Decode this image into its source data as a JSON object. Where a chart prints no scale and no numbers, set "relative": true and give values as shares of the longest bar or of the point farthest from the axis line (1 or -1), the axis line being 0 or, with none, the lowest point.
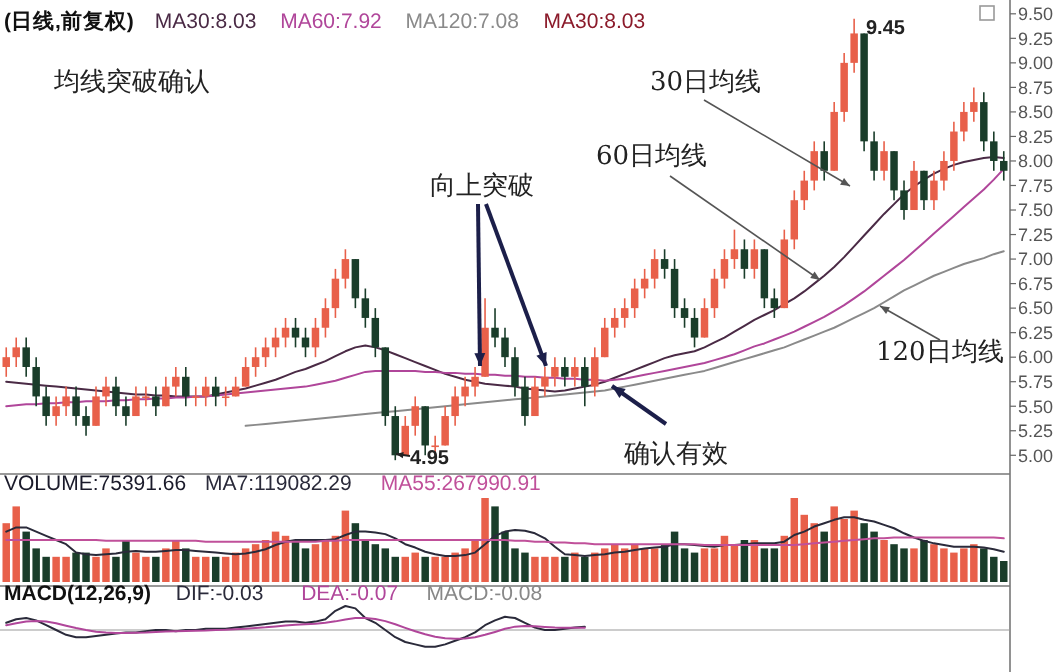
{
  "chart_data": [
    {
      "type": "candlestick",
      "title": "(日线,前复权)",
      "legend": "top left",
      "categories": [
        null,
        null,
        null,
        null,
        null,
        null,
        null,
        null,
        null,
        null,
        null,
        null,
        null,
        null,
        null,
        null,
        null,
        null,
        null,
        null,
        null,
        null,
        null,
        null,
        null,
        null,
        null,
        null,
        null,
        null,
        null,
        null,
        null,
        null,
        null,
        null,
        null,
        null,
        null,
        null,
        null,
        null,
        null,
        null,
        null,
        null,
        null,
        null,
        null,
        null,
        null,
        null,
        null,
        null,
        null,
        null,
        null,
        null,
        null,
        null,
        null,
        null,
        null,
        null,
        null,
        null,
        null,
        null,
        null,
        null,
        null,
        null,
        null,
        null,
        null,
        null,
        null,
        null,
        null,
        null,
        null,
        null,
        null,
        null,
        null,
        null,
        null,
        null,
        null,
        null,
        null,
        null,
        null,
        null,
        null,
        null,
        null,
        null,
        null,
        null,
        null
      ],
      "ohlc": [
        [
          5.9,
          6.1,
          5.8,
          6.0
        ],
        [
          6.0,
          6.2,
          5.9,
          6.1
        ],
        [
          6.1,
          6.2,
          5.8,
          5.9
        ],
        [
          5.9,
          6.0,
          5.5,
          5.6
        ],
        [
          5.6,
          5.7,
          5.3,
          5.4
        ],
        [
          5.4,
          5.6,
          5.3,
          5.5
        ],
        [
          5.5,
          5.7,
          5.4,
          5.6
        ],
        [
          5.6,
          5.7,
          5.3,
          5.4
        ],
        [
          5.4,
          5.5,
          5.2,
          5.3
        ],
        [
          5.3,
          5.7,
          5.3,
          5.6
        ],
        [
          5.6,
          5.8,
          5.5,
          5.7
        ],
        [
          5.7,
          5.8,
          5.4,
          5.5
        ],
        [
          5.5,
          5.6,
          5.3,
          5.4
        ],
        [
          5.4,
          5.7,
          5.4,
          5.6
        ],
        [
          5.6,
          5.7,
          5.5,
          5.6
        ],
        [
          5.6,
          5.7,
          5.4,
          5.5
        ],
        [
          5.5,
          5.8,
          5.5,
          5.7
        ],
        [
          5.7,
          5.9,
          5.6,
          5.8
        ],
        [
          5.8,
          5.9,
          5.5,
          5.6
        ],
        [
          5.6,
          5.7,
          5.5,
          5.6
        ],
        [
          5.6,
          5.8,
          5.5,
          5.7
        ],
        [
          5.7,
          5.8,
          5.5,
          5.6
        ],
        [
          5.6,
          5.7,
          5.5,
          5.6
        ],
        [
          5.6,
          5.8,
          5.6,
          5.7
        ],
        [
          5.7,
          6.0,
          5.7,
          5.9
        ],
        [
          5.9,
          6.1,
          5.8,
          6.0
        ],
        [
          6.0,
          6.2,
          5.9,
          6.1
        ],
        [
          6.1,
          6.3,
          6.0,
          6.2
        ],
        [
          6.2,
          6.4,
          6.1,
          6.3
        ],
        [
          6.3,
          6.4,
          6.1,
          6.2
        ],
        [
          6.2,
          6.3,
          6.0,
          6.1
        ],
        [
          6.1,
          6.4,
          6.0,
          6.3
        ],
        [
          6.3,
          6.6,
          6.2,
          6.5
        ],
        [
          6.5,
          6.9,
          6.4,
          6.8
        ],
        [
          6.8,
          7.1,
          6.7,
          7.0
        ],
        [
          7.0,
          7.0,
          6.5,
          6.6
        ],
        [
          6.6,
          6.7,
          6.3,
          6.4
        ],
        [
          6.4,
          6.5,
          6.0,
          6.1
        ],
        [
          6.1,
          6.1,
          5.3,
          5.4
        ],
        [
          5.4,
          5.5,
          4.95,
          5.0
        ],
        [
          5.0,
          5.4,
          5.0,
          5.3
        ],
        [
          5.3,
          5.6,
          5.2,
          5.5
        ],
        [
          5.5,
          5.5,
          5.0,
          5.1
        ],
        [
          5.1,
          5.2,
          5.0,
          5.1
        ],
        [
          5.1,
          5.5,
          5.1,
          5.4
        ],
        [
          5.4,
          5.7,
          5.3,
          5.6
        ],
        [
          5.6,
          5.8,
          5.5,
          5.7
        ],
        [
          5.7,
          5.9,
          5.6,
          5.8
        ],
        [
          5.8,
          6.6,
          5.8,
          6.3
        ],
        [
          6.3,
          6.5,
          6.1,
          6.2
        ],
        [
          6.2,
          6.3,
          5.9,
          6.0
        ],
        [
          6.0,
          6.1,
          5.6,
          5.7
        ],
        [
          5.7,
          5.8,
          5.3,
          5.4
        ],
        [
          5.4,
          5.8,
          5.4,
          5.7
        ],
        [
          5.7,
          5.9,
          5.6,
          5.8
        ],
        [
          5.8,
          6.0,
          5.7,
          5.9
        ],
        [
          5.9,
          6.0,
          5.7,
          5.8
        ],
        [
          5.8,
          6.0,
          5.7,
          5.9
        ],
        [
          5.9,
          6.0,
          5.5,
          5.7
        ],
        [
          5.7,
          6.1,
          5.6,
          6.0
        ],
        [
          6.0,
          6.4,
          6.0,
          6.3
        ],
        [
          6.3,
          6.5,
          6.2,
          6.4
        ],
        [
          6.4,
          6.6,
          6.3,
          6.5
        ],
        [
          6.5,
          6.8,
          6.4,
          6.7
        ],
        [
          6.7,
          6.9,
          6.6,
          6.8
        ],
        [
          6.8,
          7.1,
          6.7,
          7.0
        ],
        [
          7.0,
          7.1,
          6.8,
          6.9
        ],
        [
          6.9,
          7.0,
          6.4,
          6.5
        ],
        [
          6.5,
          6.6,
          6.3,
          6.4
        ],
        [
          6.4,
          6.5,
          6.1,
          6.2
        ],
        [
          6.2,
          6.6,
          6.2,
          6.5
        ],
        [
          6.5,
          6.9,
          6.4,
          6.8
        ],
        [
          6.8,
          7.1,
          6.7,
          7.0
        ],
        [
          7.0,
          7.3,
          6.9,
          7.1
        ],
        [
          7.1,
          7.2,
          6.8,
          6.9
        ],
        [
          6.9,
          7.2,
          6.8,
          7.1
        ],
        [
          7.1,
          7.1,
          6.5,
          6.6
        ],
        [
          6.6,
          6.7,
          6.4,
          6.5
        ],
        [
          6.5,
          7.3,
          6.5,
          7.2
        ],
        [
          7.2,
          7.7,
          7.1,
          7.6
        ],
        [
          7.6,
          7.9,
          7.5,
          7.8
        ],
        [
          7.8,
          8.2,
          7.7,
          8.1
        ],
        [
          8.1,
          8.2,
          7.8,
          7.9
        ],
        [
          7.9,
          8.6,
          7.9,
          8.5
        ],
        [
          8.5,
          9.1,
          8.4,
          9.0
        ],
        [
          9.0,
          9.45,
          8.9,
          9.3
        ],
        [
          9.3,
          9.3,
          8.1,
          8.2
        ],
        [
          8.2,
          8.3,
          7.8,
          7.9
        ],
        [
          7.9,
          8.2,
          7.8,
          8.1
        ],
        [
          8.1,
          8.1,
          7.6,
          7.7
        ],
        [
          7.7,
          7.8,
          7.4,
          7.5
        ],
        [
          7.5,
          8.0,
          7.5,
          7.9
        ],
        [
          7.9,
          7.9,
          7.5,
          7.6
        ],
        [
          7.6,
          7.9,
          7.5,
          7.8
        ],
        [
          7.8,
          8.1,
          7.7,
          8.0
        ],
        [
          8.0,
          8.4,
          7.9,
          8.3
        ],
        [
          8.3,
          8.6,
          8.2,
          8.5
        ],
        [
          8.5,
          8.75,
          8.4,
          8.6
        ],
        [
          8.6,
          8.7,
          8.1,
          8.2
        ],
        [
          8.2,
          8.3,
          7.9,
          8.0
        ],
        [
          8.0,
          8.1,
          7.8,
          7.9
        ]
      ],
      "colors": [
        "#e8604a",
        "#e8604a",
        "#1a3d2a",
        "#1a3d2a",
        "#1a3d2a",
        "#e8604a",
        "#e8604a",
        "#1a3d2a",
        "#1a3d2a",
        "#e8604a",
        "#e8604a",
        "#1a3d2a",
        "#1a3d2a",
        "#e8604a",
        "#e8604a",
        "#1a3d2a",
        "#e8604a",
        "#e8604a",
        "#1a3d2a",
        "#e8604a",
        "#e8604a",
        "#1a3d2a",
        "#e8604a",
        "#e8604a",
        "#e8604a",
        "#e8604a",
        "#e8604a",
        "#e8604a",
        "#e8604a",
        "#1a3d2a",
        "#1a3d2a",
        "#e8604a",
        "#e8604a",
        "#e8604a",
        "#e8604a",
        "#1a3d2a",
        "#1a3d2a",
        "#1a3d2a",
        "#1a3d2a",
        "#1a3d2a",
        "#e8604a",
        "#e8604a",
        "#1a3d2a",
        "#e8604a",
        "#e8604a",
        "#e8604a",
        "#e8604a",
        "#e8604a",
        "#e8604a",
        "#1a3d2a",
        "#1a3d2a",
        "#1a3d2a",
        "#1a3d2a",
        "#e8604a",
        "#e8604a",
        "#e8604a",
        "#1a3d2a",
        "#e8604a",
        "#1a3d2a",
        "#e8604a",
        "#e8604a",
        "#e8604a",
        "#e8604a",
        "#e8604a",
        "#e8604a",
        "#e8604a",
        "#1a3d2a",
        "#1a3d2a",
        "#1a3d2a",
        "#1a3d2a",
        "#e8604a",
        "#e8604a",
        "#e8604a",
        "#e8604a",
        "#1a3d2a",
        "#e8604a",
        "#1a3d2a",
        "#1a3d2a",
        "#e8604a",
        "#e8604a",
        "#e8604a",
        "#e8604a",
        "#1a3d2a",
        "#e8604a",
        "#e8604a",
        "#e8604a",
        "#1a3d2a",
        "#1a3d2a",
        "#e8604a",
        "#1a3d2a",
        "#1a3d2a",
        "#e8604a",
        "#1a3d2a",
        "#e8604a",
        "#e8604a",
        "#e8604a",
        "#e8604a",
        "#e8604a",
        "#1a3d2a",
        "#1a3d2a",
        "#1a3d2a"
      ],
      "series": [
        {
          "type": "line",
          "name": "MA30:8.03",
          "color": "#4a2a45",
          "values": [
            5.75,
            5.74,
            5.73,
            5.72,
            5.71,
            5.7,
            5.69,
            5.68,
            5.67,
            5.66,
            5.65,
            5.64,
            5.63,
            5.62,
            5.62,
            5.61,
            5.61,
            5.6,
            5.6,
            5.6,
            5.6,
            5.62,
            5.64,
            5.66,
            5.68,
            5.71,
            5.74,
            5.77,
            5.81,
            5.85,
            5.88,
            5.92,
            5.96,
            6.01,
            6.06,
            6.1,
            6.12,
            6.1,
            6.07,
            6.03,
            5.99,
            5.95,
            5.91,
            5.87,
            5.83,
            5.8,
            5.77,
            5.75,
            5.73,
            5.72,
            5.71,
            5.7,
            5.68,
            5.67,
            5.66,
            5.65,
            5.66,
            5.68,
            5.7,
            5.72,
            5.75,
            5.79,
            5.83,
            5.87,
            5.91,
            5.95,
            5.99,
            6.02,
            6.04,
            6.06,
            6.1,
            6.15,
            6.2,
            6.26,
            6.32,
            6.38,
            6.43,
            6.48,
            6.54,
            6.6,
            6.67,
            6.75,
            6.83,
            6.92,
            7.02,
            7.13,
            7.24,
            7.35,
            7.46,
            7.56,
            7.66,
            7.74,
            7.81,
            7.87,
            7.92,
            7.96,
            7.99,
            8.01,
            8.03,
            8.04,
            8.03
          ]
        },
        {
          "type": "line",
          "name": "MA60:7.92",
          "color": "#b0469a",
          "values": [
            5.5,
            5.51,
            5.52,
            5.52,
            5.53,
            5.53,
            5.54,
            5.54,
            5.55,
            5.55,
            5.55,
            5.56,
            5.56,
            5.57,
            5.57,
            5.58,
            5.58,
            5.59,
            5.59,
            5.6,
            5.6,
            5.61,
            5.62,
            5.63,
            5.64,
            5.65,
            5.66,
            5.67,
            5.68,
            5.69,
            5.7,
            5.72,
            5.74,
            5.76,
            5.79,
            5.82,
            5.85,
            5.86,
            5.86,
            5.86,
            5.86,
            5.86,
            5.85,
            5.85,
            5.84,
            5.84,
            5.83,
            5.83,
            5.82,
            5.82,
            5.81,
            5.81,
            5.8,
            5.8,
            5.79,
            5.79,
            5.78,
            5.78,
            5.77,
            5.77,
            5.76,
            5.77,
            5.78,
            5.8,
            5.82,
            5.84,
            5.86,
            5.88,
            5.9,
            5.92,
            5.94,
            5.97,
            6.0,
            6.03,
            6.07,
            6.11,
            6.14,
            6.18,
            6.22,
            6.26,
            6.31,
            6.36,
            6.41,
            6.47,
            6.53,
            6.6,
            6.67,
            6.75,
            6.83,
            6.91,
            6.99,
            7.08,
            7.17,
            7.26,
            7.35,
            7.44,
            7.53,
            7.62,
            7.71,
            7.81,
            7.92
          ]
        },
        {
          "type": "line",
          "name": "MA120:7.08",
          "color": "#8a8a8a",
          "values": [
            null,
            null,
            null,
            null,
            null,
            null,
            null,
            null,
            null,
            null,
            null,
            null,
            null,
            null,
            null,
            null,
            null,
            null,
            null,
            null,
            null,
            null,
            null,
            null,
            5.3,
            5.31,
            5.32,
            5.33,
            5.34,
            5.35,
            5.36,
            5.37,
            5.38,
            5.39,
            5.4,
            5.41,
            5.42,
            5.43,
            5.44,
            5.45,
            5.46,
            5.47,
            5.48,
            5.49,
            5.5,
            5.51,
            5.52,
            5.53,
            5.54,
            5.55,
            5.56,
            5.57,
            5.58,
            5.59,
            5.6,
            5.61,
            5.62,
            5.63,
            5.64,
            5.65,
            5.66,
            5.68,
            5.7,
            5.72,
            5.74,
            5.76,
            5.78,
            5.8,
            5.82,
            5.84,
            5.86,
            5.89,
            5.92,
            5.95,
            5.98,
            6.01,
            6.04,
            6.07,
            6.1,
            6.14,
            6.18,
            6.22,
            6.26,
            6.3,
            6.35,
            6.4,
            6.45,
            6.5,
            6.56,
            6.62,
            6.68,
            6.73,
            6.78,
            6.83,
            6.87,
            6.91,
            6.95,
            6.98,
            7.01,
            7.05,
            7.08
          ]
        }
      ],
      "ylim": [
        4.85,
        9.6
      ],
      "yticks": [
        {
          "value": 5,
          "label": "5.00"
        },
        {
          "value": 5.25,
          "label": "5.25"
        },
        {
          "value": 5.5,
          "label": "5.50"
        },
        {
          "value": 5.75,
          "label": "5.75"
        },
        {
          "value": 6,
          "label": "6.00"
        },
        {
          "value": 6.25,
          "label": "6.25"
        },
        {
          "value": 6.5,
          "label": "6.50"
        },
        {
          "value": 6.75,
          "label": "6.75"
        },
        {
          "value": 7,
          "label": "7.00"
        },
        {
          "value": 7.25,
          "label": "7.25"
        },
        {
          "value": 7.5,
          "label": "7.50"
        },
        {
          "value": 7.75,
          "label": "7.75"
        },
        {
          "value": 8,
          "label": "8.00"
        },
        {
          "value": 8.25,
          "label": "8.25"
        },
        {
          "value": 8.5,
          "label": "8.50"
        },
        {
          "value": 8.75,
          "label": "8.75"
        },
        {
          "value": 9,
          "label": "9.00"
        },
        {
          "value": 9.25,
          "label": "9.25"
        },
        {
          "value": 9.5,
          "label": "9.50"
        }
      ],
      "annotations": [
        "均线突破确认",
        "向上突破",
        "30日均线",
        "60日均线",
        "120日均线",
        "确认有效",
        "9.45",
        "4.95",
        "MA30:8.03"
      ]
    },
    {
      "type": "bar",
      "relative": true,
      "legend": "top left",
      "categories": [
        null,
        null,
        null,
        null,
        null,
        null,
        null,
        null,
        null,
        null,
        null,
        null,
        null,
        null,
        null,
        null,
        null,
        null,
        null,
        null,
        null,
        null,
        null,
        null,
        null,
        null,
        null,
        null,
        null,
        null,
        null,
        null,
        null,
        null,
        null,
        null,
        null,
        null,
        null,
        null,
        null,
        null,
        null,
        null,
        null,
        null,
        null,
        null,
        null,
        null,
        null,
        null,
        null,
        null,
        null,
        null,
        null,
        null,
        null,
        null,
        null,
        null,
        null,
        null,
        null,
        null,
        null,
        null,
        null,
        null,
        null,
        null,
        null,
        null,
        null,
        null,
        null,
        null,
        null,
        null,
        null,
        null,
        null,
        null,
        null,
        null,
        null,
        null,
        null,
        null,
        null,
        null,
        null,
        null,
        null,
        null,
        null,
        null,
        null,
        null,
        null
      ],
      "series": [
        {
          "type": "bar",
          "name": "VOLUME:75391.66",
          "color": "#1a1a2a",
          "colors": [
            "#e8604a",
            "#e8604a",
            "#1a3d2a",
            "#1a3d2a",
            "#1a3d2a",
            "#e8604a",
            "#e8604a",
            "#1a3d2a",
            "#1a3d2a",
            "#e8604a",
            "#e8604a",
            "#1a3d2a",
            "#1a3d2a",
            "#e8604a",
            "#e8604a",
            "#1a3d2a",
            "#e8604a",
            "#e8604a",
            "#1a3d2a",
            "#e8604a",
            "#e8604a",
            "#1a3d2a",
            "#e8604a",
            "#e8604a",
            "#e8604a",
            "#e8604a",
            "#e8604a",
            "#e8604a",
            "#e8604a",
            "#1a3d2a",
            "#1a3d2a",
            "#e8604a",
            "#e8604a",
            "#e8604a",
            "#e8604a",
            "#1a3d2a",
            "#1a3d2a",
            "#1a3d2a",
            "#1a3d2a",
            "#1a3d2a",
            "#e8604a",
            "#e8604a",
            "#1a3d2a",
            "#e8604a",
            "#e8604a",
            "#e8604a",
            "#e8604a",
            "#e8604a",
            "#e8604a",
            "#1a3d2a",
            "#1a3d2a",
            "#1a3d2a",
            "#1a3d2a",
            "#e8604a",
            "#e8604a",
            "#e8604a",
            "#1a3d2a",
            "#e8604a",
            "#1a3d2a",
            "#e8604a",
            "#e8604a",
            "#e8604a",
            "#e8604a",
            "#e8604a",
            "#e8604a",
            "#e8604a",
            "#1a3d2a",
            "#1a3d2a",
            "#1a3d2a",
            "#1a3d2a",
            "#e8604a",
            "#e8604a",
            "#e8604a",
            "#e8604a",
            "#1a3d2a",
            "#e8604a",
            "#1a3d2a",
            "#1a3d2a",
            "#e8604a",
            "#e8604a",
            "#e8604a",
            "#e8604a",
            "#1a3d2a",
            "#e8604a",
            "#e8604a",
            "#e8604a",
            "#1a3d2a",
            "#1a3d2a",
            "#e8604a",
            "#1a3d2a",
            "#1a3d2a",
            "#e8604a",
            "#1a3d2a",
            "#e8604a",
            "#e8604a",
            "#e8604a",
            "#e8604a",
            "#e8604a",
            "#1a3d2a",
            "#1a3d2a",
            "#1a3d2a"
          ],
          "values": [
            0.7,
            0.9,
            0.6,
            0.4,
            0.3,
            0.3,
            0.3,
            0.35,
            0.35,
            0.3,
            0.4,
            0.3,
            0.5,
            0.35,
            0.3,
            0.3,
            0.4,
            0.5,
            0.4,
            0.3,
            0.3,
            0.3,
            0.3,
            0.35,
            0.4,
            0.45,
            0.5,
            0.6,
            0.55,
            0.5,
            0.4,
            0.45,
            0.5,
            0.55,
            0.85,
            0.7,
            0.5,
            0.45,
            0.4,
            0.3,
            0.3,
            0.35,
            0.3,
            0.3,
            0.3,
            0.35,
            0.4,
            0.5,
            1.0,
            0.9,
            0.6,
            0.4,
            0.35,
            0.3,
            0.3,
            0.3,
            0.3,
            0.35,
            0.3,
            0.35,
            0.4,
            0.45,
            0.4,
            0.45,
            0.4,
            0.4,
            0.45,
            0.6,
            0.4,
            0.35,
            0.4,
            0.4,
            0.55,
            0.45,
            0.5,
            0.5,
            0.4,
            0.4,
            0.55,
            1.0,
            0.8,
            0.7,
            0.6,
            0.9,
            0.75,
            0.85,
            0.7,
            0.6,
            0.5,
            0.45,
            0.4,
            0.4,
            0.5,
            0.45,
            0.4,
            0.35,
            0.4,
            0.45,
            0.4,
            0.3,
            0.25
          ]
        },
        {
          "type": "line",
          "name": "MA7:119082.29",
          "color": "#2a2a3a",
          "values": [
            0.6,
            0.65,
            0.65,
            0.6,
            0.55,
            0.5,
            0.45,
            0.35,
            0.33,
            0.32,
            0.33,
            0.34,
            0.36,
            0.37,
            0.36,
            0.36,
            0.37,
            0.38,
            0.38,
            0.37,
            0.36,
            0.35,
            0.34,
            0.33,
            0.34,
            0.36,
            0.39,
            0.44,
            0.48,
            0.5,
            0.5,
            0.5,
            0.5,
            0.51,
            0.56,
            0.6,
            0.6,
            0.59,
            0.57,
            0.52,
            0.45,
            0.41,
            0.36,
            0.33,
            0.31,
            0.31,
            0.32,
            0.35,
            0.45,
            0.55,
            0.6,
            0.62,
            0.61,
            0.58,
            0.52,
            0.42,
            0.33,
            0.32,
            0.31,
            0.32,
            0.33,
            0.35,
            0.36,
            0.38,
            0.4,
            0.41,
            0.42,
            0.45,
            0.45,
            0.44,
            0.43,
            0.42,
            0.44,
            0.44,
            0.45,
            0.46,
            0.46,
            0.46,
            0.48,
            0.56,
            0.6,
            0.66,
            0.7,
            0.74,
            0.77,
            0.77,
            0.74,
            0.72,
            0.68,
            0.64,
            0.58,
            0.53,
            0.49,
            0.46,
            0.44,
            0.42,
            0.42,
            0.42,
            0.41,
            0.39,
            0.36
          ]
        },
        {
          "type": "line",
          "name": "MA55:267990.91",
          "color": "#c0509a",
          "values": [
            0.5,
            0.5,
            0.5,
            0.5,
            0.5,
            0.5,
            0.5,
            0.5,
            0.5,
            0.5,
            0.49,
            0.49,
            0.49,
            0.49,
            0.49,
            0.49,
            0.49,
            0.49,
            0.49,
            0.49,
            0.48,
            0.48,
            0.48,
            0.48,
            0.48,
            0.48,
            0.48,
            0.48,
            0.48,
            0.48,
            0.48,
            0.48,
            0.49,
            0.49,
            0.5,
            0.5,
            0.5,
            0.5,
            0.5,
            0.5,
            0.5,
            0.5,
            0.5,
            0.5,
            0.5,
            0.5,
            0.5,
            0.5,
            0.5,
            0.5,
            0.5,
            0.49,
            0.49,
            0.48,
            0.48,
            0.47,
            0.47,
            0.46,
            0.46,
            0.45,
            0.45,
            0.45,
            0.45,
            0.45,
            0.45,
            0.45,
            0.45,
            0.45,
            0.45,
            0.45,
            0.44,
            0.44,
            0.44,
            0.44,
            0.44,
            0.44,
            0.44,
            0.44,
            0.44,
            0.44,
            0.45,
            0.46,
            0.47,
            0.48,
            0.49,
            0.5,
            0.51,
            0.52,
            0.52,
            0.53,
            0.53,
            0.53,
            0.53,
            0.53,
            0.53,
            0.53,
            0.53,
            0.53,
            0.53,
            0.53,
            0.52
          ]
        }
      ]
    },
    {
      "type": "line",
      "relative": true,
      "title": "MACD(12,26,9)",
      "legend": "top left",
      "categories": [
        null,
        null,
        null,
        null,
        null,
        null,
        null,
        null,
        null,
        null,
        null,
        null,
        null,
        null,
        null,
        null,
        null,
        null,
        null,
        null,
        null,
        null,
        null,
        null,
        null,
        null,
        null,
        null,
        null,
        null,
        null,
        null,
        null,
        null,
        null,
        null,
        null,
        null,
        null,
        null,
        null,
        null,
        null,
        null,
        null,
        null,
        null,
        null,
        null,
        null,
        null,
        null,
        null,
        null,
        null,
        null,
        null,
        null,
        null,
        null,
        null,
        null,
        null,
        null,
        null,
        null,
        null,
        null,
        null,
        null,
        null,
        null,
        null,
        null,
        null,
        null,
        null,
        null,
        null,
        null,
        null,
        null,
        null,
        null,
        null,
        null,
        null,
        null,
        null,
        null,
        null,
        null,
        null,
        null,
        null,
        null,
        null,
        null,
        null,
        null,
        null
      ],
      "series": [
        {
          "name": "DIF:-0.03",
          "color": "#2a2a3a",
          "values": [
            0.3,
            0.45,
            0.5,
            0.4,
            0.2,
            0,
            -0.2,
            -0.3,
            -0.3,
            -0.25,
            -0.2,
            -0.15,
            -0.1,
            -0.1,
            -0.05,
            0,
            0,
            -0.05,
            0,
            0,
            0.05,
            0.05,
            0.05,
            0.1,
            0.15,
            0.2,
            0.25,
            0.3,
            0.35,
            0.35,
            0.3,
            0.35,
            0.45,
            0.8,
            1,
            0.9,
            0.5,
            0.3,
            0,
            -0.3,
            -0.5,
            -0.6,
            -0.7,
            -0.7,
            -0.6,
            -0.45,
            -0.3,
            -0.1,
            0.2,
            0.4,
            0.55,
            0.5,
            0.3,
            0.1,
            0,
            0,
            0.05,
            0.1,
            0.14,
            null,
            null,
            null,
            null,
            null,
            null,
            null,
            null,
            null,
            null,
            null,
            null,
            null,
            null,
            null,
            null,
            null,
            null,
            null,
            null,
            null,
            null,
            null,
            null,
            null,
            null,
            null,
            null,
            null,
            null,
            null,
            null,
            null,
            null,
            null,
            null,
            null,
            null,
            null,
            null,
            null,
            null
          ]
        },
        {
          "name": "DEA:-0.07",
          "color": "#b0469a",
          "values": [
            0.2,
            0.28,
            0.35,
            0.38,
            0.35,
            0.28,
            0.18,
            0.08,
            0,
            -0.07,
            -0.1,
            -0.12,
            -0.12,
            -0.11,
            -0.1,
            -0.08,
            -0.06,
            -0.05,
            -0.04,
            -0.03,
            -0.02,
            0,
            0.01,
            0.03,
            0.05,
            0.08,
            0.11,
            0.15,
            0.19,
            0.22,
            0.24,
            0.26,
            0.3,
            0.36,
            0.44,
            0.5,
            0.5,
            0.46,
            0.37,
            0.24,
            0.09,
            -0.05,
            -0.18,
            -0.28,
            -0.34,
            -0.36,
            -0.35,
            -0.3,
            -0.2,
            -0.08,
            0.05,
            0.14,
            0.17,
            0.16,
            0.13,
            0.1,
            0.09,
            0.09,
            0.09,
            null,
            null,
            null,
            null,
            null,
            null,
            null,
            null,
            null,
            null,
            null,
            null,
            null,
            null,
            null,
            null,
            null,
            null,
            null,
            null,
            null,
            null,
            null,
            null,
            null,
            null,
            null,
            null,
            null,
            null,
            null,
            null,
            null,
            null,
            null,
            null,
            null,
            null,
            null,
            null,
            null,
            null
          ]
        }
      ],
      "annotations": [
        "MACD:-0.08"
      ]
    }
  ]
}
